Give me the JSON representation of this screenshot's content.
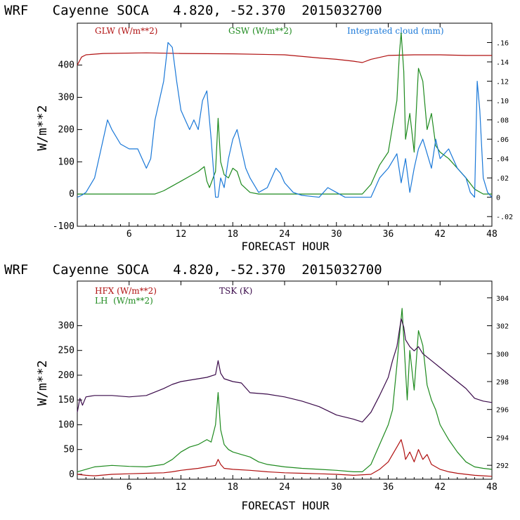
{
  "colors": {
    "red": "#b01010",
    "green": "#1e8a1e",
    "blue": "#1a78d8",
    "purple": "#3a0a4a",
    "axis": "#000000"
  },
  "chart_data": [
    {
      "type": "line",
      "title": "WRF   Cayenne SOCA   4.820, -52.370  2015032700",
      "xlabel": "FORECAST HOUR",
      "ylabel": "W/m**2",
      "xlim": [
        0,
        48
      ],
      "ylim": [
        -100,
        530
      ],
      "y2lim": [
        -0.03,
        0.18
      ],
      "x_ticks": [
        "6",
        "12",
        "18",
        "24",
        "30",
        "36",
        "42",
        "48"
      ],
      "y_ticks": [
        "-100",
        "0",
        "100",
        "200",
        "300",
        "400"
      ],
      "y2_ticks": [
        "-.02",
        "0",
        ".02",
        ".04",
        ".06",
        ".08",
        ".10",
        ".12",
        ".14",
        ".16"
      ],
      "series": [
        {
          "name": "GLW (W/m**2)",
          "axis": "left",
          "x": [
            0,
            0.5,
            1,
            3,
            8,
            12,
            18,
            24,
            28,
            30,
            32,
            33,
            34,
            36,
            39,
            42,
            45,
            48
          ],
          "values": [
            400,
            425,
            432,
            436,
            438,
            436,
            435,
            432,
            422,
            418,
            412,
            408,
            418,
            430,
            432,
            432,
            430,
            430
          ]
        },
        {
          "name": "GSW (W/m**2)",
          "axis": "left",
          "x": [
            0,
            9,
            10,
            11,
            12,
            13,
            14,
            14.7,
            15,
            15.3,
            16,
            16.3,
            16.6,
            17,
            17.5,
            18,
            18.5,
            19,
            20,
            21,
            22,
            33,
            34,
            35,
            36,
            36.5,
            37,
            37.3,
            37.5,
            37.8,
            38,
            38.5,
            39,
            39.5,
            40,
            40.5,
            41,
            41.5,
            42,
            43,
            44,
            45,
            46,
            47,
            48
          ],
          "values": [
            0,
            0,
            10,
            25,
            40,
            55,
            70,
            85,
            40,
            20,
            70,
            235,
            100,
            60,
            50,
            80,
            70,
            30,
            5,
            0,
            0,
            0,
            30,
            90,
            130,
            210,
            290,
            440,
            500,
            380,
            170,
            250,
            130,
            390,
            350,
            200,
            250,
            150,
            130,
            110,
            80,
            50,
            15,
            0,
            0
          ]
        },
        {
          "name": "Integrated cloud (mm)",
          "axis": "right",
          "x": [
            0,
            0.5,
            1,
            2,
            3,
            3.5,
            4,
            5,
            6,
            7,
            8,
            8.5,
            9,
            10,
            10.5,
            11,
            11.5,
            12,
            12.5,
            13,
            13.5,
            14,
            14.5,
            15,
            15.5,
            16,
            16.3,
            16.6,
            17,
            17.5,
            18,
            18.5,
            19,
            19.5,
            20,
            21,
            22,
            23,
            23.5,
            24,
            25,
            26,
            27,
            28,
            29,
            30,
            31,
            34,
            35,
            36,
            37,
            37.5,
            38,
            38.5,
            39,
            39.5,
            40,
            41,
            41.5,
            42,
            43,
            44,
            45,
            45.5,
            46,
            46.3,
            46.6,
            47,
            47.5,
            48
          ],
          "values": [
            0,
            0.002,
            0.005,
            0.02,
            0.06,
            0.08,
            0.07,
            0.055,
            0.05,
            0.05,
            0.03,
            0.04,
            0.08,
            0.12,
            0.16,
            0.155,
            0.12,
            0.09,
            0.08,
            0.07,
            0.08,
            0.07,
            0.1,
            0.11,
            0.06,
            0.0,
            0.0,
            0.02,
            0.01,
            0.04,
            0.06,
            0.07,
            0.05,
            0.03,
            0.02,
            0.005,
            0.01,
            0.03,
            0.025,
            0.015,
            0.005,
            0.002,
            0.001,
            0.0,
            0.01,
            0.005,
            0.0,
            0.0,
            0.02,
            0.03,
            0.045,
            0.015,
            0.04,
            0.005,
            0.03,
            0.05,
            0.06,
            0.03,
            0.06,
            0.04,
            0.05,
            0.03,
            0.02,
            0.005,
            0.0,
            0.12,
            0.09,
            0.02,
            0.005,
            0.0
          ]
        }
      ]
    },
    {
      "type": "line",
      "title": "WRF   Cayenne SOCA   4.820, -52.370  2015032700",
      "xlabel": "FORECAST HOUR",
      "ylabel": "W/m**2",
      "xlim": [
        0,
        48
      ],
      "ylim": [
        -10,
        390
      ],
      "y2lim": [
        291,
        305.2
      ],
      "x_ticks": [
        "6",
        "12",
        "18",
        "24",
        "30",
        "36",
        "42",
        "48"
      ],
      "y_ticks": [
        "0",
        "50",
        "100",
        "150",
        "200",
        "250",
        "300"
      ],
      "y2_ticks": [
        "292",
        "294",
        "296",
        "298",
        "300",
        "302",
        "304"
      ],
      "series": [
        {
          "name": "HFX (W/m**2)",
          "axis": "left",
          "x": [
            0,
            1,
            2,
            4,
            6,
            8,
            10,
            11,
            12,
            13,
            14,
            15,
            16,
            16.3,
            16.6,
            17,
            18,
            20,
            22,
            24,
            26,
            28,
            30,
            32,
            34,
            35,
            36,
            36.5,
            37,
            37.5,
            37.8,
            38,
            38.5,
            39,
            39.5,
            40,
            40.5,
            41,
            42,
            43,
            44,
            45,
            46,
            47,
            48
          ],
          "values": [
            0,
            -2,
            -3,
            0,
            1,
            2,
            3,
            5,
            8,
            10,
            12,
            15,
            18,
            30,
            20,
            12,
            10,
            8,
            5,
            3,
            2,
            1,
            0,
            -2,
            0,
            10,
            25,
            40,
            55,
            70,
            50,
            30,
            45,
            25,
            50,
            30,
            40,
            20,
            10,
            5,
            2,
            0,
            -2,
            -3,
            -4
          ]
        },
        {
          "name": "LH  (W/m**2)",
          "axis": "left",
          "x": [
            0,
            1,
            2,
            4,
            6,
            8,
            10,
            11,
            12,
            13,
            14,
            15,
            15.5,
            16,
            16.3,
            16.6,
            17,
            17.5,
            18,
            19,
            20,
            21,
            22,
            24,
            26,
            28,
            30,
            32,
            33,
            34,
            35,
            36,
            36.5,
            37,
            37.3,
            37.6,
            37.9,
            38.2,
            38.5,
            39,
            39.5,
            40,
            40.5,
            41,
            41.5,
            42,
            43,
            44,
            45,
            46,
            47,
            48
          ],
          "values": [
            5,
            10,
            15,
            18,
            16,
            15,
            20,
            30,
            45,
            55,
            60,
            70,
            65,
            100,
            165,
            90,
            60,
            50,
            45,
            40,
            35,
            25,
            20,
            15,
            12,
            10,
            8,
            5,
            5,
            20,
            60,
            100,
            130,
            220,
            280,
            335,
            240,
            150,
            250,
            170,
            290,
            260,
            180,
            150,
            130,
            100,
            70,
            45,
            25,
            15,
            12,
            10
          ]
        },
        {
          "name": "TSK (K)",
          "axis": "right",
          "x": [
            0,
            0.3,
            0.6,
            1,
            2,
            4,
            6,
            8,
            10,
            11,
            12,
            13,
            14,
            15,
            16,
            16.3,
            16.6,
            17,
            18,
            19,
            20,
            22,
            24,
            26,
            28,
            30,
            32,
            33,
            34,
            35,
            36,
            36.5,
            37,
            37.5,
            37.8,
            38,
            38.5,
            39,
            39.5,
            40,
            41,
            42,
            43,
            44,
            45,
            46,
            47,
            48
          ],
          "values": [
            295.8,
            296.8,
            296.3,
            296.9,
            297,
            297,
            296.9,
            297,
            297.5,
            297.8,
            298,
            298.1,
            298.2,
            298.3,
            298.5,
            299.5,
            298.6,
            298.2,
            298,
            297.9,
            297.2,
            297.1,
            296.9,
            296.6,
            296.2,
            295.6,
            295.3,
            295.1,
            295.8,
            297,
            298.3,
            299.5,
            300.5,
            302.5,
            301.9,
            301,
            300.5,
            300.2,
            300.5,
            300,
            299.5,
            299,
            298.5,
            298,
            297.5,
            296.8,
            296.6,
            296.5
          ]
        }
      ]
    }
  ]
}
